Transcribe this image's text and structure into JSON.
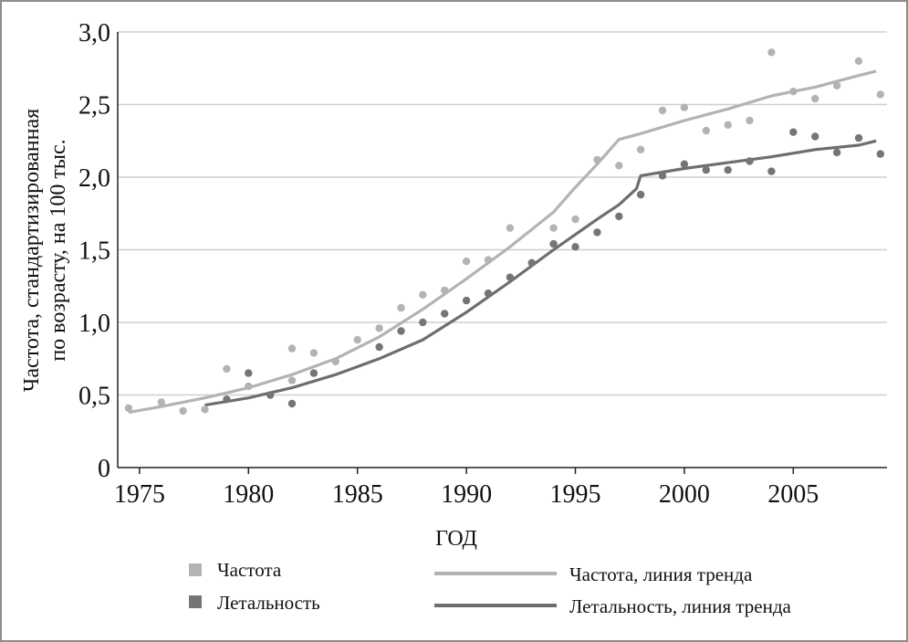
{
  "chart_data": {
    "type": "scatter",
    "xlabel": "ГОД",
    "ylabel_lines": [
      "Частота, стандартизированная",
      "по возрасту, на 100 тыс."
    ],
    "xlim": [
      1974,
      2009.3
    ],
    "ylim": [
      0,
      3.0
    ],
    "x_ticks": [
      1975,
      1980,
      1985,
      1990,
      1995,
      2000,
      2005
    ],
    "y_ticks": [
      {
        "value": 0,
        "label": "0"
      },
      {
        "value": 0.5,
        "label": "0,5"
      },
      {
        "value": 1.0,
        "label": "1,0"
      },
      {
        "value": 1.5,
        "label": "1,5"
      },
      {
        "value": 2.0,
        "label": "2,0"
      },
      {
        "value": 2.5,
        "label": "2,5"
      },
      {
        "value": 3.0,
        "label": "3,0"
      }
    ],
    "grid": true,
    "legend_position": "bottom",
    "series": [
      {
        "name": "Частота",
        "kind": "points",
        "color": "#b3b3b3",
        "points": [
          [
            1974.5,
            0.41
          ],
          [
            1976,
            0.45
          ],
          [
            1977,
            0.39
          ],
          [
            1978,
            0.4
          ],
          [
            1979,
            0.68
          ],
          [
            1980,
            0.56
          ],
          [
            1982,
            0.82
          ],
          [
            1982,
            0.6
          ],
          [
            1983,
            0.79
          ],
          [
            1984,
            0.73
          ],
          [
            1985,
            0.88
          ],
          [
            1986,
            0.96
          ],
          [
            1987,
            1.1
          ],
          [
            1988,
            1.19
          ],
          [
            1989,
            1.22
          ],
          [
            1990,
            1.42
          ],
          [
            1991,
            1.43
          ],
          [
            1992,
            1.65
          ],
          [
            1994,
            1.65
          ],
          [
            1995,
            1.71
          ],
          [
            1996,
            2.12
          ],
          [
            1997,
            2.08
          ],
          [
            1998,
            2.19
          ],
          [
            1999,
            2.46
          ],
          [
            2000,
            2.48
          ],
          [
            2001,
            2.32
          ],
          [
            2002,
            2.36
          ],
          [
            2003,
            2.39
          ],
          [
            2004,
            2.86
          ],
          [
            2005,
            2.59
          ],
          [
            2006,
            2.54
          ],
          [
            2007,
            2.63
          ],
          [
            2008,
            2.8
          ],
          [
            2009,
            2.57
          ]
        ]
      },
      {
        "name": "Летальность",
        "kind": "points",
        "color": "#757575",
        "points": [
          [
            1979,
            0.47
          ],
          [
            1980,
            0.65
          ],
          [
            1981,
            0.5
          ],
          [
            1982,
            0.44
          ],
          [
            1983,
            0.65
          ],
          [
            1986,
            0.83
          ],
          [
            1987,
            0.94
          ],
          [
            1988,
            1.0
          ],
          [
            1989,
            1.06
          ],
          [
            1990,
            1.15
          ],
          [
            1991,
            1.2
          ],
          [
            1992,
            1.31
          ],
          [
            1993,
            1.41
          ],
          [
            1994,
            1.54
          ],
          [
            1995,
            1.52
          ],
          [
            1996,
            1.62
          ],
          [
            1997,
            1.73
          ],
          [
            1998,
            1.88
          ],
          [
            1999,
            2.01
          ],
          [
            2000,
            2.09
          ],
          [
            2001,
            2.05
          ],
          [
            2002,
            2.05
          ],
          [
            2003,
            2.11
          ],
          [
            2004,
            2.04
          ],
          [
            2005,
            2.31
          ],
          [
            2006,
            2.28
          ],
          [
            2007,
            2.17
          ],
          [
            2008,
            2.27
          ],
          [
            2009,
            2.16
          ]
        ]
      },
      {
        "name": "Частота, линия тренда",
        "kind": "line",
        "color": "#b3b3b3",
        "points": [
          [
            1974.5,
            0.38
          ],
          [
            1976,
            0.42
          ],
          [
            1978,
            0.48
          ],
          [
            1980,
            0.55
          ],
          [
            1982,
            0.64
          ],
          [
            1984,
            0.75
          ],
          [
            1986,
            0.9
          ],
          [
            1988,
            1.09
          ],
          [
            1990,
            1.3
          ],
          [
            1992,
            1.52
          ],
          [
            1994,
            1.76
          ],
          [
            1995,
            1.93
          ],
          [
            1996,
            2.09
          ],
          [
            1997,
            2.26
          ],
          [
            1998,
            2.3
          ],
          [
            2000,
            2.39
          ],
          [
            2002,
            2.47
          ],
          [
            2004,
            2.56
          ],
          [
            2006,
            2.62
          ],
          [
            2008,
            2.7
          ],
          [
            2008.8,
            2.73
          ]
        ]
      },
      {
        "name": "Летальность, линия тренда",
        "kind": "line",
        "color": "#6e6e6e",
        "points": [
          [
            1978,
            0.43
          ],
          [
            1980,
            0.48
          ],
          [
            1982,
            0.55
          ],
          [
            1984,
            0.64
          ],
          [
            1986,
            0.75
          ],
          [
            1988,
            0.88
          ],
          [
            1990,
            1.07
          ],
          [
            1992,
            1.28
          ],
          [
            1994,
            1.5
          ],
          [
            1996,
            1.71
          ],
          [
            1997,
            1.81
          ],
          [
            1997.8,
            1.92
          ],
          [
            1998,
            2.01
          ],
          [
            2000,
            2.06
          ],
          [
            2002,
            2.1
          ],
          [
            2004,
            2.14
          ],
          [
            2006,
            2.19
          ],
          [
            2008,
            2.22
          ],
          [
            2008.8,
            2.25
          ]
        ]
      }
    ]
  },
  "legend": {
    "items": [
      {
        "label": "Частота",
        "kind": "marker",
        "color": "#b3b3b3"
      },
      {
        "label": "Летальность",
        "kind": "marker",
        "color": "#757575"
      },
      {
        "label": "Частота, линия тренда",
        "kind": "line",
        "color": "#b3b3b3"
      },
      {
        "label": "Летальность, линия тренда",
        "kind": "line",
        "color": "#6e6e6e"
      }
    ]
  },
  "colors": {
    "grid": "#cfcfcf",
    "axis": "#222222",
    "frame": "#8c8c8c"
  }
}
